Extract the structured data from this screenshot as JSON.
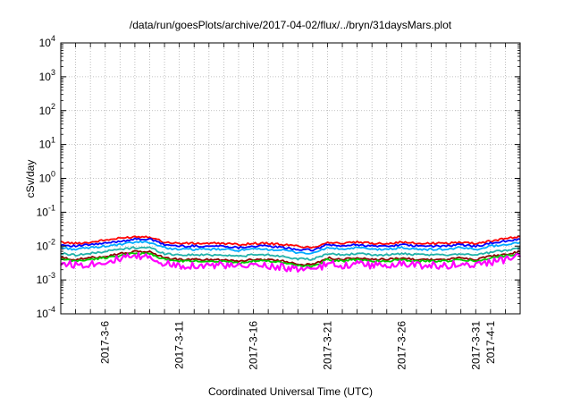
{
  "chart_data": {
    "type": "line",
    "title": "/data/run/goesPlots/archive/2017-04-02/flux/../bryn/31daysMars.plot",
    "xlabel": "Coordinated Universal Time (UTC)",
    "ylabel": "cSv/day",
    "yscale": "log",
    "ylim": [
      0.0001,
      10000
    ],
    "xlim": [
      "2017-03-03",
      "2017-04-03"
    ],
    "grid": true,
    "y_ticks": [
      {
        "base": "10",
        "exp": "-4",
        "value": 0.0001
      },
      {
        "base": "10",
        "exp": "-3",
        "value": 0.001
      },
      {
        "base": "10",
        "exp": "-2",
        "value": 0.01
      },
      {
        "base": "10",
        "exp": "-1",
        "value": 0.1
      },
      {
        "base": "10",
        "exp": "0",
        "value": 1
      },
      {
        "base": "10",
        "exp": "1",
        "value": 10
      },
      {
        "base": "10",
        "exp": "2",
        "value": 100
      },
      {
        "base": "10",
        "exp": "3",
        "value": 1000
      },
      {
        "base": "10",
        "exp": "4",
        "value": 10000
      }
    ],
    "x_ticks": [
      {
        "label": "2017-3-6",
        "date": "2017-03-06"
      },
      {
        "label": "2017-3-11",
        "date": "2017-03-11"
      },
      {
        "label": "2017-3-16",
        "date": "2017-03-16"
      },
      {
        "label": "2017-3-21",
        "date": "2017-03-21"
      },
      {
        "label": "2017-3-26",
        "date": "2017-03-26"
      },
      {
        "label": "2017-3-31",
        "date": "2017-03-31"
      },
      {
        "label": "2017-4-1",
        "date": "2017-04-01"
      }
    ],
    "x": [
      "2017-03-03",
      "2017-03-04",
      "2017-03-05",
      "2017-03-06",
      "2017-03-07",
      "2017-03-08",
      "2017-03-09",
      "2017-03-10",
      "2017-03-11",
      "2017-03-12",
      "2017-03-13",
      "2017-03-14",
      "2017-03-15",
      "2017-03-16",
      "2017-03-17",
      "2017-03-18",
      "2017-03-19",
      "2017-03-20",
      "2017-03-21",
      "2017-03-22",
      "2017-03-23",
      "2017-03-24",
      "2017-03-25",
      "2017-03-26",
      "2017-03-27",
      "2017-03-28",
      "2017-03-29",
      "2017-03-30",
      "2017-03-31",
      "2017-04-01",
      "2017-04-02",
      "2017-04-03"
    ],
    "series": [
      {
        "color": "#ff0000",
        "values": [
          0.013,
          0.012,
          0.013,
          0.015,
          0.017,
          0.019,
          0.019,
          0.013,
          0.012,
          0.012,
          0.012,
          0.012,
          0.011,
          0.012,
          0.012,
          0.011,
          0.01,
          0.009,
          0.013,
          0.012,
          0.013,
          0.012,
          0.012,
          0.013,
          0.012,
          0.012,
          0.012,
          0.013,
          0.012,
          0.014,
          0.017,
          0.019
        ]
      },
      {
        "color": "#0000ff",
        "values": [
          0.011,
          0.01,
          0.011,
          0.012,
          0.014,
          0.016,
          0.016,
          0.011,
          0.01,
          0.01,
          0.01,
          0.01,
          0.009,
          0.01,
          0.01,
          0.009,
          0.008,
          0.0075,
          0.011,
          0.01,
          0.011,
          0.01,
          0.01,
          0.011,
          0.01,
          0.01,
          0.01,
          0.011,
          0.01,
          0.012,
          0.014,
          0.016
        ]
      },
      {
        "color": "#00aaff",
        "values": [
          0.009,
          0.008,
          0.009,
          0.01,
          0.011,
          0.013,
          0.013,
          0.009,
          0.008,
          0.008,
          0.008,
          0.008,
          0.0075,
          0.008,
          0.008,
          0.0075,
          0.0065,
          0.006,
          0.009,
          0.008,
          0.009,
          0.008,
          0.008,
          0.009,
          0.008,
          0.008,
          0.008,
          0.009,
          0.008,
          0.01,
          0.011,
          0.013
        ]
      },
      {
        "color": "#20b2aa",
        "values": [
          0.006,
          0.0055,
          0.006,
          0.007,
          0.008,
          0.009,
          0.009,
          0.006,
          0.0055,
          0.0055,
          0.0055,
          0.0055,
          0.005,
          0.0055,
          0.0055,
          0.005,
          0.0042,
          0.004,
          0.006,
          0.0055,
          0.006,
          0.0055,
          0.0055,
          0.006,
          0.0055,
          0.0055,
          0.0055,
          0.006,
          0.0055,
          0.0065,
          0.0075,
          0.009
        ]
      },
      {
        "color": "#8b0000",
        "values": [
          0.0045,
          0.004,
          0.0045,
          0.005,
          0.006,
          0.0068,
          0.0068,
          0.0045,
          0.004,
          0.004,
          0.004,
          0.004,
          0.0036,
          0.004,
          0.004,
          0.0036,
          0.003,
          0.0028,
          0.0045,
          0.004,
          0.0045,
          0.004,
          0.004,
          0.0045,
          0.004,
          0.004,
          0.004,
          0.0045,
          0.004,
          0.005,
          0.0058,
          0.0068
        ]
      },
      {
        "color": "#00cc00",
        "values": [
          0.004,
          0.0036,
          0.004,
          0.0045,
          0.0053,
          0.006,
          0.006,
          0.004,
          0.0036,
          0.0036,
          0.0036,
          0.0036,
          0.0032,
          0.0036,
          0.0036,
          0.0032,
          0.0027,
          0.0025,
          0.004,
          0.0036,
          0.004,
          0.0036,
          0.0036,
          0.004,
          0.0036,
          0.0036,
          0.0036,
          0.004,
          0.0036,
          0.0045,
          0.0052,
          0.006
        ]
      },
      {
        "color": "#ff00ff",
        "values": [
          0.0032,
          0.0028,
          0.003,
          0.0035,
          0.0042,
          0.0048,
          0.0048,
          0.003,
          0.0027,
          0.0027,
          0.0027,
          0.0027,
          0.0024,
          0.0027,
          0.0027,
          0.0024,
          0.002,
          0.0019,
          0.003,
          0.0027,
          0.003,
          0.0027,
          0.0027,
          0.003,
          0.0027,
          0.0027,
          0.0027,
          0.003,
          0.0027,
          0.0034,
          0.004,
          0.0048
        ]
      }
    ]
  }
}
